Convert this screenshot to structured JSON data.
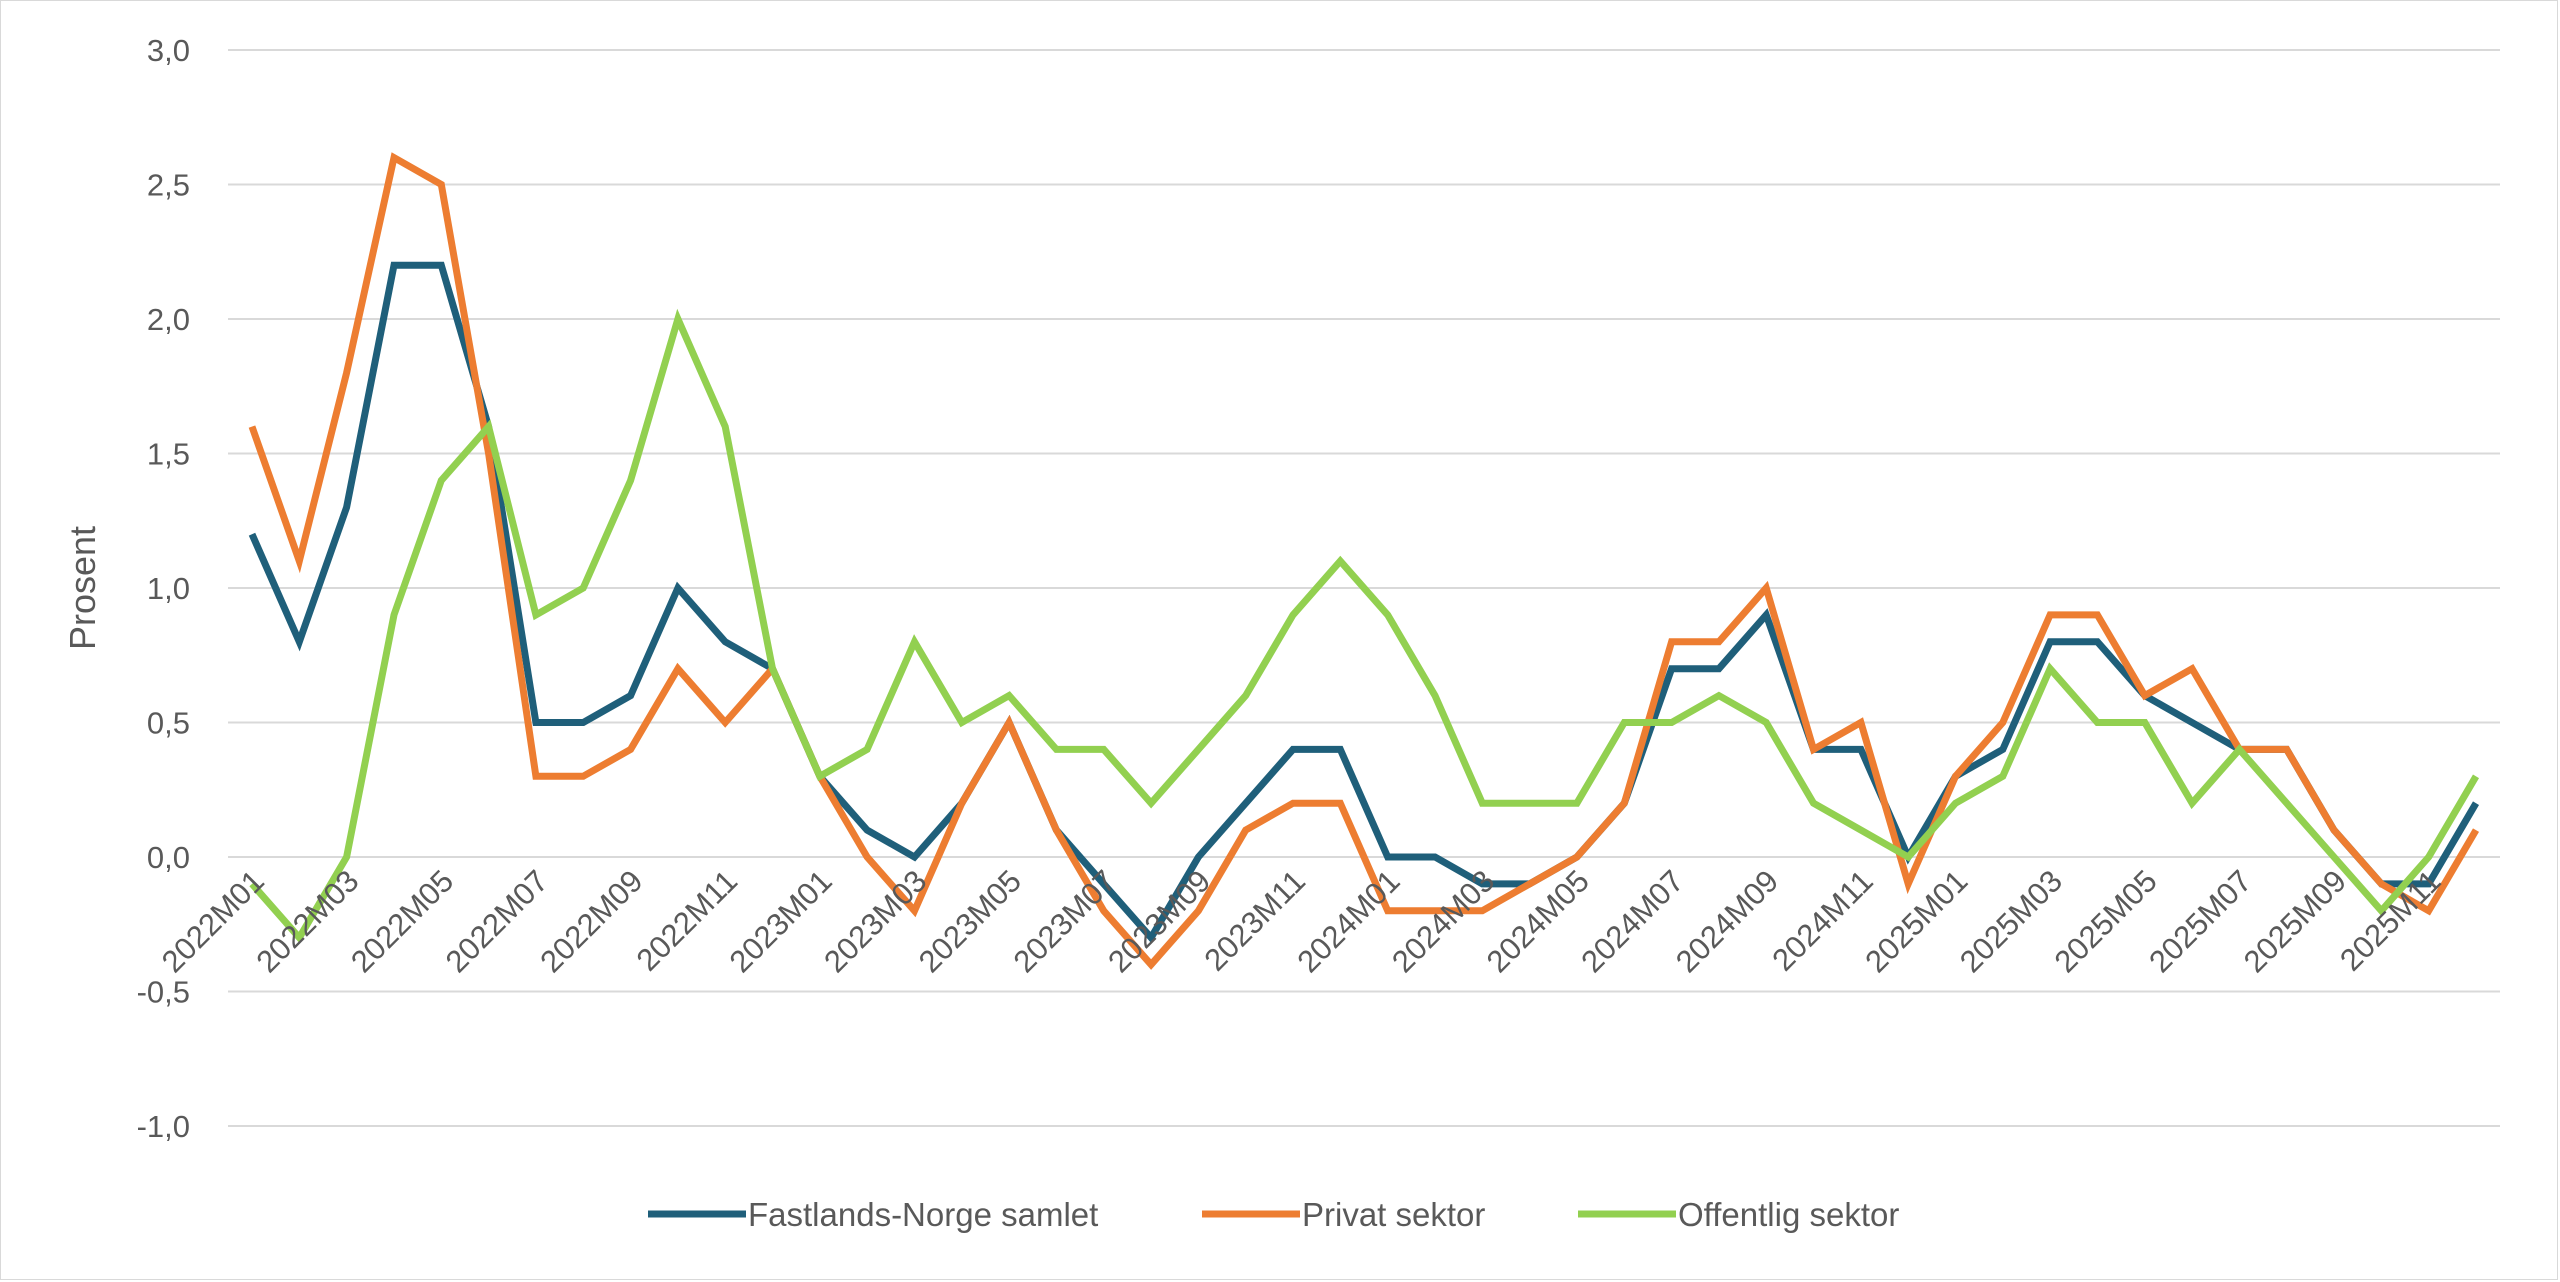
{
  "chart_data": {
    "type": "line",
    "title": "",
    "xlabel": "",
    "ylabel": "Prosent",
    "ylim": [
      -1.0,
      3.0
    ],
    "yticks": [
      "-1,0",
      "-0,5",
      "0,0",
      "0,5",
      "1,0",
      "1,5",
      "2,0",
      "2,5",
      "3,0"
    ],
    "ytick_values": [
      -1.0,
      -0.5,
      0.0,
      0.5,
      1.0,
      1.5,
      2.0,
      2.5,
      3.0
    ],
    "grid": true,
    "legend_position": "bottom",
    "categories": [
      "2022M01",
      "2022M02",
      "2022M03",
      "2022M04",
      "2022M05",
      "2022M06",
      "2022M07",
      "2022M08",
      "2022M09",
      "2022M10",
      "2022M11",
      "2022M12",
      "2023M01",
      "2023M02",
      "2023M03",
      "2023M04",
      "2023M05",
      "2023M06",
      "2023M07",
      "2023M08",
      "2023M09",
      "2023M10",
      "2023M11",
      "2023M12",
      "2024M01",
      "2024M02",
      "2024M03",
      "2024M04",
      "2024M05",
      "2024M06",
      "2024M07",
      "2024M08",
      "2024M09",
      "2024M10",
      "2024M11",
      "2024M12",
      "2025M01",
      "2025M02",
      "2025M03",
      "2025M04",
      "2025M05",
      "2025M06",
      "2025M07",
      "2025M08",
      "2025M09",
      "2025M10",
      "2025M11",
      "2025M12"
    ],
    "xtick_labels": [
      "2022M01",
      "2022M03",
      "2022M05",
      "2022M07",
      "2022M09",
      "2022M11",
      "2023M01",
      "2023M03",
      "2023M05",
      "2023M07",
      "2023M09",
      "2023M11",
      "2024M01",
      "2024M03",
      "2024M05",
      "2024M07",
      "2024M09",
      "2024M11",
      "2025M01",
      "2025M03",
      "2025M05",
      "2025M07",
      "2025M09",
      "2025M11"
    ],
    "series": [
      {
        "name": "Fastlands-Norge samlet",
        "color": "#1f5f7a",
        "values": [
          1.2,
          0.8,
          1.3,
          2.2,
          2.2,
          1.6,
          0.5,
          0.5,
          0.6,
          1.0,
          0.8,
          0.7,
          0.3,
          0.1,
          0.0,
          0.2,
          0.5,
          0.1,
          -0.1,
          -0.3,
          0.0,
          0.2,
          0.4,
          0.4,
          0.0,
          0.0,
          -0.1,
          -0.1,
          0.0,
          0.2,
          0.7,
          0.7,
          0.9,
          0.4,
          0.4,
          0.0,
          0.3,
          0.4,
          0.8,
          0.8,
          0.6,
          0.5,
          0.4,
          0.4,
          0.1,
          -0.1,
          -0.1,
          0.2
        ]
      },
      {
        "name": "Privat sektor",
        "color": "#ed7d31",
        "values": [
          1.6,
          1.1,
          1.8,
          2.6,
          2.5,
          1.5,
          0.3,
          0.3,
          0.4,
          0.7,
          0.5,
          0.7,
          0.3,
          0.0,
          -0.2,
          0.2,
          0.5,
          0.1,
          -0.2,
          -0.4,
          -0.2,
          0.1,
          0.2,
          0.2,
          -0.2,
          -0.2,
          -0.2,
          -0.1,
          0.0,
          0.2,
          0.8,
          0.8,
          1.0,
          0.4,
          0.5,
          -0.1,
          0.3,
          0.5,
          0.9,
          0.9,
          0.6,
          0.7,
          0.4,
          0.4,
          0.1,
          -0.1,
          -0.2,
          0.1
        ]
      },
      {
        "name": "Offentlig sektor",
        "color": "#92d050",
        "values": [
          -0.1,
          -0.3,
          0.0,
          0.9,
          1.4,
          1.6,
          0.9,
          1.0,
          1.4,
          2.0,
          1.6,
          0.7,
          0.3,
          0.4,
          0.8,
          0.5,
          0.6,
          0.4,
          0.4,
          0.2,
          0.4,
          0.6,
          0.9,
          1.1,
          0.9,
          0.6,
          0.2,
          0.2,
          0.2,
          0.5,
          0.5,
          0.6,
          0.5,
          0.2,
          0.1,
          0.0,
          0.2,
          0.3,
          0.7,
          0.5,
          0.5,
          0.2,
          0.4,
          0.2,
          0.0,
          -0.2,
          0.0,
          0.3
        ]
      }
    ]
  }
}
